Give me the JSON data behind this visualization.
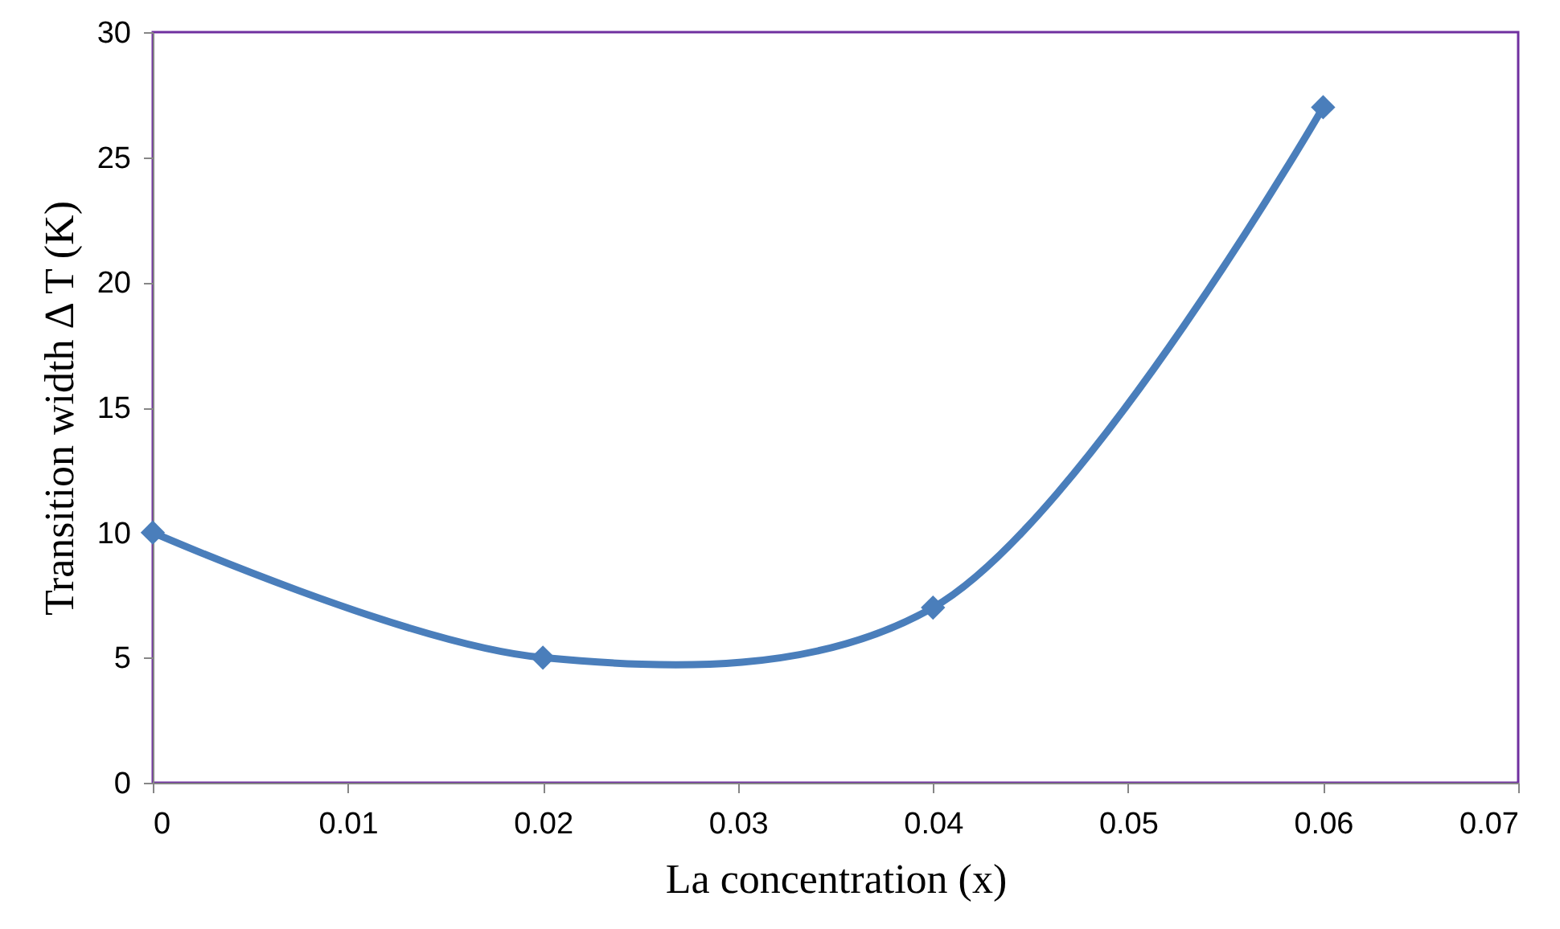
{
  "chart_data": {
    "type": "line",
    "x": [
      0,
      0.02,
      0.04,
      0.06
    ],
    "series": [
      {
        "color": "#4a7ebb",
        "values": [
          10,
          5,
          7,
          27
        ]
      }
    ],
    "xlabel": "La concentration (x)",
    "ylabel": "Transition width Δ T (K)",
    "xlim": [
      0,
      0.07
    ],
    "xticks": [
      0,
      0.01,
      0.02,
      0.03,
      0.04,
      0.05,
      0.06,
      0.07
    ],
    "ylim": [
      0,
      30
    ],
    "yticks": [
      0,
      5,
      10,
      15,
      20,
      25,
      30
    ],
    "grid": false,
    "legend": false,
    "marker": "diamond",
    "line_style": "solid"
  }
}
